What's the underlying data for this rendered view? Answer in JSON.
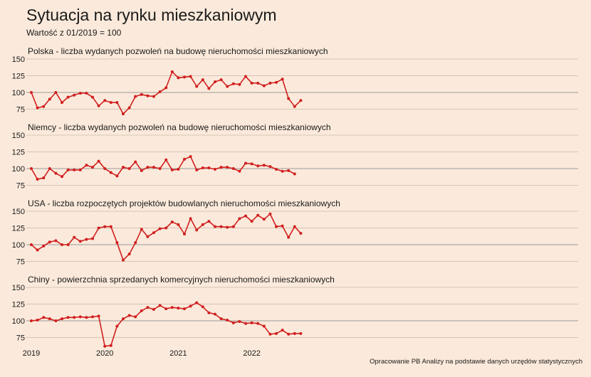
{
  "title": "Sytuacja na rynku mieszkaniowym",
  "subtitle": "Wartość z 01/2019 = 100",
  "source": "Opracowanie PB Analizy na podstawie danych urzędów statystycznych",
  "colors": {
    "line": "#d11f1f",
    "background": "#fbeadb",
    "grid": "#c9b8a8",
    "baseline": "#999999"
  },
  "chart_data": {
    "type": "line",
    "x_start": "2019-01",
    "x_ticks": [
      "2019",
      "2020",
      "2021",
      "2022"
    ],
    "y_ticks": [
      75,
      100,
      125,
      150
    ],
    "ylim": [
      65,
      150
    ],
    "panels": [
      {
        "title": "Polska - liczba wydanych pozwoleń na budowę nieruchomości mieszkaniowych",
        "values": [
          100,
          77,
          79,
          90,
          100,
          85,
          93,
          96,
          99,
          99,
          93,
          80,
          88,
          85,
          85,
          68,
          77,
          94,
          97,
          95,
          94,
          101,
          107,
          131,
          122,
          123,
          124,
          109,
          119,
          106,
          116,
          119,
          109,
          113,
          112,
          124,
          114,
          114,
          110,
          114,
          115,
          120,
          91,
          79,
          88
        ]
      },
      {
        "title": "Niemcy - liczba wydanych pozwoleń na budowę nieruchomości mieszkaniowych",
        "values": [
          100,
          84,
          86,
          100,
          93,
          88,
          98,
          98,
          98,
          105,
          102,
          111,
          100,
          94,
          89,
          102,
          100,
          110,
          97,
          102,
          102,
          100,
          113,
          98,
          99,
          114,
          118,
          98,
          101,
          101,
          99,
          102,
          102,
          100,
          96,
          108,
          107,
          104,
          105,
          103,
          99,
          96,
          97,
          92
        ]
      },
      {
        "title": "USA - liczba rozpoczętych projektów budowlanych nieruchomości mieszkaniowych",
        "values": [
          100,
          92,
          98,
          104,
          106,
          100,
          100,
          111,
          105,
          108,
          109,
          125,
          127,
          127,
          103,
          77,
          86,
          103,
          123,
          112,
          118,
          124,
          125,
          134,
          130,
          116,
          139,
          122,
          130,
          135,
          127,
          127,
          126,
          127,
          139,
          143,
          135,
          144,
          138,
          146,
          127,
          128,
          111,
          127,
          117
        ]
      },
      {
        "title": "Chiny - powierzchnia sprzedanych komercyjnych nieruchomości mieszkaniowych",
        "values": [
          100,
          101,
          105,
          103,
          100,
          103,
          105,
          105,
          106,
          105,
          106,
          107,
          62,
          63,
          92,
          103,
          108,
          106,
          115,
          120,
          117,
          123,
          118,
          120,
          119,
          118,
          122,
          127,
          121,
          112,
          110,
          103,
          101,
          97,
          99,
          96,
          97,
          96,
          92,
          80,
          81,
          86,
          80,
          81,
          81
        ]
      }
    ]
  }
}
